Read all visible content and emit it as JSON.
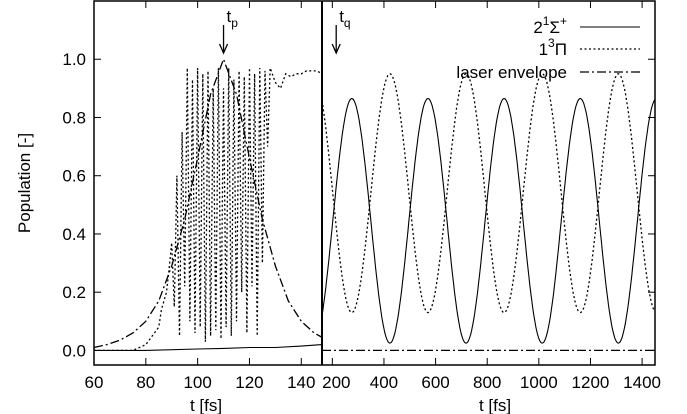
{
  "chart_data": [
    {
      "type": "line",
      "panel": "left",
      "xlabel": "t [fs]",
      "ylabel": "Population [-]",
      "xlim": [
        60,
        148
      ],
      "ylim": [
        -0.05,
        1.2
      ],
      "x_ticks": [
        60,
        80,
        100,
        120,
        140
      ],
      "y_ticks": [
        0.0,
        0.2,
        0.4,
        0.6,
        0.8,
        1.0
      ],
      "grid": false,
      "annotations": [
        {
          "text_main": "t",
          "text_sub": "p",
          "x": 110
        }
      ],
      "series": [
        {
          "name_ref": "singlet",
          "style": "solid",
          "x": [
            60,
            80,
            100,
            110,
            120,
            130,
            140,
            148
          ],
          "y": [
            0.0,
            0.0,
            0.005,
            0.007,
            0.01,
            0.01,
            0.015,
            0.02
          ]
        },
        {
          "name_ref": "triplet",
          "style": "dotted",
          "x": [
            60,
            75,
            80,
            85,
            86,
            88,
            89,
            90,
            91,
            92,
            93,
            94,
            95,
            96,
            97,
            98,
            99,
            100,
            101,
            102,
            103,
            104,
            105,
            106,
            107,
            108,
            109,
            110,
            111,
            112,
            113,
            114,
            115,
            116,
            117,
            118,
            119,
            120,
            121,
            122,
            123,
            124,
            125,
            126,
            127,
            128,
            130,
            132,
            134,
            136,
            138,
            140,
            142,
            144,
            146,
            148
          ],
          "y": [
            0.0,
            0.0,
            0.02,
            0.08,
            0.14,
            0.2,
            0.28,
            0.37,
            0.15,
            0.6,
            0.05,
            0.75,
            0.22,
            0.97,
            0.1,
            0.93,
            0.06,
            0.97,
            0.08,
            0.95,
            0.03,
            0.96,
            0.05,
            0.9,
            0.07,
            0.97,
            0.04,
            0.9,
            0.08,
            0.97,
            0.05,
            0.93,
            0.1,
            0.96,
            0.2,
            0.94,
            0.06,
            0.97,
            0.22,
            0.95,
            0.05,
            0.97,
            0.3,
            0.96,
            0.7,
            0.97,
            0.92,
            0.9,
            0.95,
            0.94,
            0.95,
            0.95,
            0.96,
            0.96,
            0.96,
            0.95
          ]
        },
        {
          "name_ref": "envelope",
          "style": "dash-dot",
          "x": [
            60,
            65,
            70,
            75,
            80,
            85,
            90,
            95,
            100,
            105,
            110,
            115,
            120,
            125,
            130,
            135,
            140,
            145,
            148
          ],
          "y": [
            0.01,
            0.02,
            0.035,
            0.06,
            0.1,
            0.17,
            0.29,
            0.45,
            0.66,
            0.88,
            1.0,
            0.88,
            0.66,
            0.45,
            0.29,
            0.17,
            0.1,
            0.06,
            0.045
          ]
        }
      ]
    },
    {
      "type": "line",
      "panel": "right",
      "xlabel": "t [fs]",
      "xlim": [
        160,
        1450
      ],
      "ylim": [
        -0.05,
        1.2
      ],
      "x_ticks": [
        200,
        400,
        600,
        800,
        1000,
        1200,
        1400
      ],
      "grid": false,
      "annotations": [
        {
          "text_main": "t",
          "text_sub": "q",
          "x": 215
        }
      ],
      "legend": {
        "position": "top-right",
        "entries": [
          {
            "ref": "singlet",
            "style": "solid",
            "parts": [
              "2",
              "1",
              "Σ",
              "+"
            ]
          },
          {
            "ref": "triplet",
            "style": "dotted",
            "parts": [
              "1",
              "3",
              "Π",
              ""
            ]
          },
          {
            "ref": "envelope",
            "style": "dash-dot",
            "parts": [
              "laser envelope",
              "",
              "",
              ""
            ]
          }
        ]
      },
      "series": [
        {
          "name_ref": "singlet",
          "style": "solid",
          "oscillation": {
            "period_fs": 295,
            "first_min_fs": 423,
            "mean": 0.445,
            "amplitude": 0.42,
            "x_start": 160,
            "x_end": 1450
          }
        },
        {
          "name_ref": "triplet",
          "style": "dotted",
          "oscillation": {
            "period_fs": 295,
            "first_max_fs": 423,
            "mean": 0.54,
            "amplitude": 0.41,
            "x_start": 160,
            "x_end": 1450
          }
        },
        {
          "name_ref": "envelope",
          "style": "dash-dot",
          "x": [
            160,
            1450
          ],
          "y": [
            0.0,
            0.0
          ]
        }
      ]
    }
  ]
}
